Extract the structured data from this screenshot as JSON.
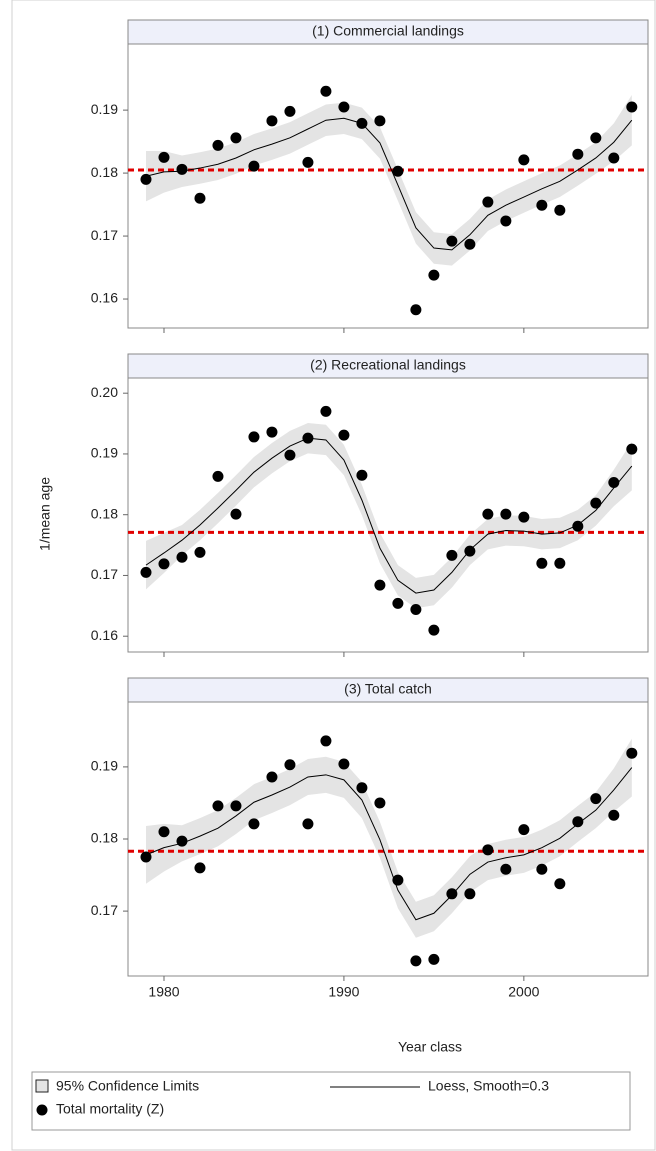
{
  "xlabel": "Year class",
  "ylabel": "1/mean age",
  "legend": [
    "95% Confidence Limits",
    "Loess, Smooth=0.3",
    "Total mortality (Z)"
  ],
  "chart_data": [
    {
      "type": "scatter",
      "title": "(1) Commercial landings",
      "x": [
        1979,
        1980,
        1981,
        1982,
        1983,
        1984,
        1985,
        1986,
        1987,
        1988,
        1989,
        1990,
        1991,
        1992,
        1993,
        1994,
        1995,
        1996,
        1997,
        1998,
        1999,
        2000,
        2001,
        2002,
        2003,
        2004,
        2005,
        2006
      ],
      "values": [
        0.179,
        0.1825,
        0.1806,
        0.176,
        0.1844,
        0.1856,
        0.1811,
        0.1883,
        0.1898,
        0.1817,
        0.193,
        0.1905,
        0.1879,
        0.1883,
        0.1803,
        0.1583,
        0.1638,
        0.1692,
        0.1687,
        0.1754,
        0.1724,
        0.1821,
        0.1749,
        0.1741,
        0.183,
        0.1856,
        0.1824,
        0.1905
      ],
      "loess": [
        0.1795,
        0.1802,
        0.1803,
        0.1808,
        0.1814,
        0.1824,
        0.1837,
        0.1846,
        0.1856,
        0.187,
        0.1884,
        0.1887,
        0.1879,
        0.1848,
        0.1781,
        0.1713,
        0.1681,
        0.1678,
        0.1702,
        0.1733,
        0.1749,
        0.1762,
        0.1775,
        0.1787,
        0.1805,
        0.1824,
        0.1849,
        0.1884
      ],
      "lower": [
        0.1755,
        0.1769,
        0.1778,
        0.1783,
        0.1789,
        0.1799,
        0.1812,
        0.1821,
        0.1831,
        0.1845,
        0.1859,
        0.1862,
        0.1854,
        0.1823,
        0.1756,
        0.1688,
        0.1656,
        0.1653,
        0.1677,
        0.1708,
        0.1724,
        0.1737,
        0.175,
        0.1762,
        0.178,
        0.1799,
        0.1819,
        0.1844
      ],
      "upper": [
        0.1835,
        0.1835,
        0.1828,
        0.1833,
        0.1839,
        0.1849,
        0.1862,
        0.1871,
        0.1881,
        0.1895,
        0.1909,
        0.1912,
        0.1904,
        0.1873,
        0.1806,
        0.1738,
        0.1706,
        0.1703,
        0.1727,
        0.1758,
        0.1774,
        0.1787,
        0.18,
        0.1812,
        0.183,
        0.1849,
        0.1879,
        0.1924
      ],
      "reference_line": 0.1805,
      "xlim": [
        1978,
        2006.9
      ],
      "xticks": [
        1980,
        1990,
        2000
      ],
      "ylim": [
        0.1554,
        0.2005
      ],
      "yticks": [
        0.16,
        0.17,
        0.18,
        0.19
      ],
      "point_color": "#000000",
      "loess_color": "#000000",
      "band_color": "#e4e4e4",
      "reference_color": "#e00000"
    },
    {
      "type": "scatter",
      "title": "(2) Recreational landings",
      "x": [
        1979,
        1980,
        1981,
        1982,
        1983,
        1984,
        1985,
        1986,
        1987,
        1988,
        1989,
        1990,
        1991,
        1992,
        1993,
        1994,
        1995,
        1996,
        1997,
        1998,
        1999,
        2000,
        2001,
        2002,
        2003,
        2004,
        2005,
        2006
      ],
      "values": [
        0.1705,
        0.1719,
        0.173,
        0.1738,
        0.1863,
        0.1801,
        0.1928,
        0.1936,
        0.1898,
        0.1926,
        0.197,
        0.1931,
        0.1865,
        0.1684,
        0.1654,
        0.1644,
        0.161,
        0.1733,
        0.174,
        0.1801,
        0.1801,
        0.1796,
        0.172,
        0.172,
        0.1781,
        0.1819,
        0.1853,
        0.1908
      ],
      "loess": [
        0.1717,
        0.1737,
        0.1758,
        0.1783,
        0.1811,
        0.184,
        0.187,
        0.1893,
        0.1913,
        0.1926,
        0.1923,
        0.189,
        0.1824,
        0.1745,
        0.1692,
        0.1671,
        0.1676,
        0.1705,
        0.1742,
        0.1768,
        0.1774,
        0.1773,
        0.1768,
        0.177,
        0.1783,
        0.1807,
        0.1844,
        0.188
      ],
      "lower": [
        0.1677,
        0.1704,
        0.1733,
        0.1758,
        0.1786,
        0.1815,
        0.1845,
        0.1868,
        0.1888,
        0.1901,
        0.1898,
        0.1865,
        0.1799,
        0.172,
        0.1667,
        0.1646,
        0.1651,
        0.168,
        0.1717,
        0.1743,
        0.1749,
        0.1748,
        0.1743,
        0.1745,
        0.1758,
        0.1782,
        0.1814,
        0.184
      ],
      "upper": [
        0.1757,
        0.177,
        0.1783,
        0.1808,
        0.1836,
        0.1865,
        0.1895,
        0.1918,
        0.1938,
        0.1951,
        0.1948,
        0.1915,
        0.1849,
        0.177,
        0.1717,
        0.1696,
        0.1701,
        0.173,
        0.1767,
        0.1793,
        0.1799,
        0.1798,
        0.1793,
        0.1795,
        0.1808,
        0.1832,
        0.1874,
        0.192
      ],
      "reference_line": 0.1771,
      "xlim": [
        1978,
        2006.9
      ],
      "xticks": [
        1980,
        1990,
        2000
      ],
      "ylim": [
        0.1574,
        0.2025
      ],
      "yticks": [
        0.16,
        0.17,
        0.18,
        0.19,
        {
          "value": 0.2,
          "label": "0.20"
        }
      ],
      "point_color": "#000000",
      "loess_color": "#000000",
      "band_color": "#e4e4e4",
      "reference_color": "#e00000"
    },
    {
      "type": "scatter",
      "title": "(3) Total catch",
      "x": [
        1979,
        1980,
        1981,
        1982,
        1983,
        1984,
        1985,
        1986,
        1987,
        1988,
        1989,
        1990,
        1991,
        1992,
        1993,
        1994,
        1995,
        1996,
        1997,
        1998,
        1999,
        2000,
        2001,
        2002,
        2003,
        2004,
        2005,
        2006
      ],
      "values": [
        0.1775,
        0.181,
        0.1797,
        0.176,
        0.1846,
        0.1846,
        0.1821,
        0.1886,
        0.1903,
        0.1821,
        0.1936,
        0.1904,
        0.1871,
        0.185,
        0.1743,
        0.1631,
        0.1633,
        0.1724,
        0.1724,
        0.1785,
        0.1758,
        0.1813,
        0.1758,
        0.1738,
        0.1824,
        0.1856,
        0.1833,
        0.1919
      ],
      "loess": [
        0.1778,
        0.1788,
        0.1794,
        0.1804,
        0.1815,
        0.1832,
        0.1851,
        0.1861,
        0.1872,
        0.1886,
        0.1889,
        0.1882,
        0.1854,
        0.1799,
        0.1729,
        0.1688,
        0.1697,
        0.1722,
        0.1751,
        0.1768,
        0.1774,
        0.1778,
        0.1788,
        0.1801,
        0.1821,
        0.184,
        0.1868,
        0.1899
      ],
      "lower": [
        0.1738,
        0.1755,
        0.1769,
        0.1779,
        0.179,
        0.1807,
        0.1826,
        0.1836,
        0.1847,
        0.1861,
        0.1864,
        0.1857,
        0.1829,
        0.1774,
        0.1704,
        0.1663,
        0.1672,
        0.1697,
        0.1726,
        0.1743,
        0.1749,
        0.1753,
        0.1763,
        0.1776,
        0.1796,
        0.1815,
        0.1838,
        0.1859
      ],
      "upper": [
        0.1818,
        0.1821,
        0.1819,
        0.1829,
        0.184,
        0.1857,
        0.1876,
        0.1886,
        0.1897,
        0.1911,
        0.1914,
        0.1907,
        0.1879,
        0.1824,
        0.1754,
        0.1713,
        0.1722,
        0.1747,
        0.1776,
        0.1793,
        0.1799,
        0.1803,
        0.1813,
        0.1826,
        0.1846,
        0.1865,
        0.1898,
        0.1939
      ],
      "reference_line": 0.1783,
      "xlim": [
        1978,
        2006.9
      ],
      "xticks": [
        1980,
        1990,
        2000
      ],
      "ylim": [
        0.161,
        0.199
      ],
      "yticks": [
        0.17,
        0.18,
        0.19
      ],
      "point_color": "#000000",
      "loess_color": "#000000",
      "band_color": "#e4e4e4",
      "reference_color": "#e00000"
    }
  ]
}
